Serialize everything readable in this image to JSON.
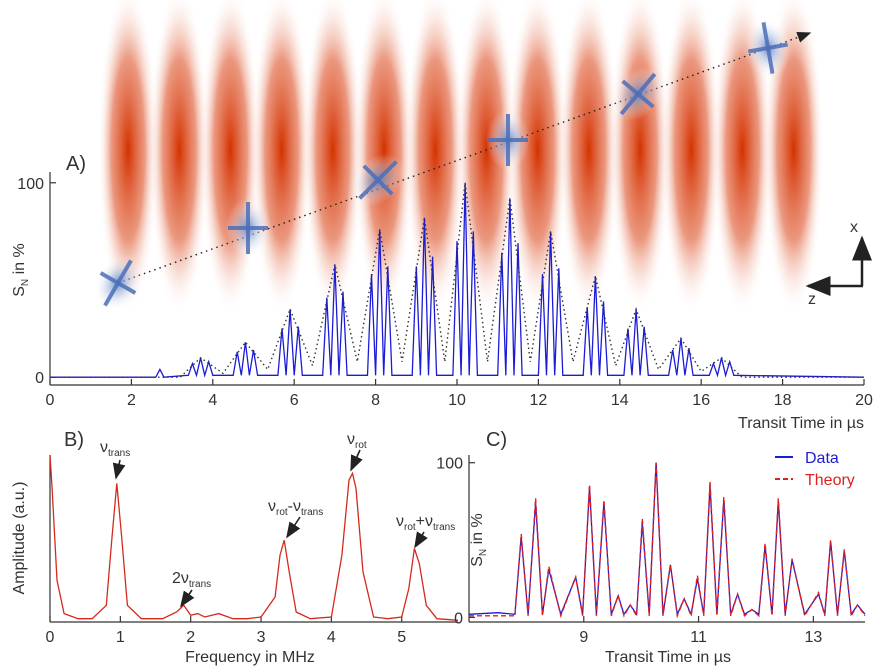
{
  "chart_data": [
    {
      "type": "line",
      "panel_label": "A)",
      "xlabel": "Transit Time in µs",
      "ylabel": [
        "S",
        "N",
        " in %"
      ],
      "annotations": [
        "x",
        "z"
      ],
      "xlim": [
        0,
        20
      ],
      "ylim": [
        -4,
        104
      ],
      "xticks": [
        0,
        2,
        4,
        6,
        8,
        10,
        12,
        14,
        16,
        18,
        20
      ],
      "yticks": [
        0,
        100
      ],
      "series": [
        {
          "color": "#1c1cd6",
          "style": "solid",
          "x": [
            0,
            2.6,
            2.7,
            2.8,
            3.4,
            3.5,
            3.6,
            3.7,
            3.8,
            3.9,
            4.0,
            4.5,
            4.6,
            4.7,
            4.8,
            4.9,
            5.0,
            5.1,
            5.6,
            5.7,
            5.8,
            5.9,
            6.0,
            6.1,
            6.2,
            6.7,
            6.8,
            6.9,
            7.0,
            7.1,
            7.2,
            7.3,
            7.8,
            7.9,
            8.0,
            8.1,
            8.2,
            8.3,
            8.4,
            8.9,
            9.0,
            9.1,
            9.2,
            9.3,
            9.4,
            9.5,
            9.9,
            10.0,
            10.1,
            10.2,
            10.3,
            10.4,
            10.5,
            11.0,
            11.1,
            11.2,
            11.3,
            11.4,
            11.5,
            11.6,
            12.0,
            12.1,
            12.2,
            12.3,
            12.4,
            12.5,
            12.6,
            13.1,
            13.2,
            13.3,
            13.4,
            13.5,
            13.6,
            13.7,
            14.1,
            14.2,
            14.3,
            14.4,
            14.5,
            14.6,
            14.7,
            15.2,
            15.3,
            15.4,
            15.5,
            15.6,
            15.7,
            15.8,
            16.2,
            16.3,
            16.4,
            16.5,
            16.6,
            16.7,
            16.8,
            20
          ],
          "values": [
            0,
            0,
            4,
            0,
            1,
            7,
            1,
            10,
            1,
            8,
            1,
            1,
            13,
            1,
            18,
            1,
            14,
            1,
            1,
            25,
            1,
            35,
            1,
            26,
            1,
            1,
            41,
            1,
            58,
            1,
            44,
            1,
            1,
            53,
            1,
            76,
            1,
            57,
            1,
            1,
            57,
            1,
            82,
            1,
            62,
            1,
            1,
            70,
            1,
            100,
            1,
            75,
            1,
            1,
            64,
            1,
            92,
            1,
            69,
            1,
            1,
            53,
            1,
            75,
            1,
            56,
            1,
            1,
            36,
            1,
            52,
            1,
            39,
            1,
            1,
            25,
            1,
            35,
            1,
            26,
            1,
            1,
            14,
            1,
            20,
            1,
            15,
            1,
            1,
            7,
            1,
            10,
            1,
            8,
            1,
            0
          ]
        },
        {
          "color": "#333333",
          "style": "dotted",
          "x": [
            0,
            3.2,
            3.7,
            4.25,
            4.8,
            5.35,
            5.9,
            6.45,
            7.0,
            7.55,
            8.1,
            8.65,
            9.2,
            9.7,
            10.2,
            10.75,
            11.3,
            11.8,
            12.3,
            12.85,
            13.4,
            13.9,
            14.4,
            14.95,
            15.5,
            16.0,
            16.5,
            17.0,
            20
          ],
          "values": [
            0,
            0,
            10,
            2,
            18,
            4,
            35,
            6,
            58,
            8,
            76,
            8,
            82,
            8,
            100,
            8,
            92,
            8,
            75,
            8,
            52,
            6,
            35,
            4,
            20,
            3,
            10,
            0,
            0
          ]
        }
      ]
    },
    {
      "type": "line",
      "panel_label": "B)",
      "xlabel": "Frequency in MHz",
      "ylabel": [
        "Amplitude (a.u.)"
      ],
      "xlim": [
        0,
        5.8
      ],
      "ylim": [
        0,
        1
      ],
      "xticks": [
        0,
        1,
        2,
        3,
        4,
        5
      ],
      "annotations": [
        [
          "ν",
          "trans"
        ],
        [
          "2ν",
          "trans"
        ],
        [
          "ν",
          "rot",
          "-ν",
          "trans"
        ],
        [
          "ν",
          "rot"
        ],
        [
          "ν",
          "rot",
          "+ν",
          "trans"
        ]
      ],
      "series": [
        {
          "color": "#d42a1e",
          "style": "solid",
          "x": [
            0,
            0.03,
            0.1,
            0.2,
            0.4,
            0.6,
            0.8,
            0.88,
            0.95,
            1.02,
            1.1,
            1.3,
            1.6,
            1.8,
            1.9,
            2.0,
            2.1,
            2.2,
            2.4,
            2.6,
            2.8,
            3.0,
            3.2,
            3.27,
            3.33,
            3.4,
            3.5,
            3.7,
            4.0,
            4.15,
            4.25,
            4.3,
            4.35,
            4.45,
            4.6,
            4.8,
            5.0,
            5.1,
            5.18,
            5.25,
            5.35,
            5.5,
            5.8
          ],
          "values": [
            1,
            0.8,
            0.25,
            0.05,
            0.02,
            0.02,
            0.1,
            0.5,
            0.83,
            0.5,
            0.1,
            0.02,
            0.02,
            0.06,
            0.1,
            0.04,
            0.05,
            0.03,
            0.05,
            0.02,
            0.02,
            0.03,
            0.15,
            0.4,
            0.49,
            0.3,
            0.06,
            0.02,
            0.03,
            0.4,
            0.85,
            0.89,
            0.8,
            0.3,
            0.03,
            0.02,
            0.03,
            0.2,
            0.44,
            0.35,
            0.1,
            0.02,
            0.01
          ]
        }
      ]
    },
    {
      "type": "line",
      "panel_label": "C)",
      "xlabel": "Transit Time in µs",
      "ylabel": [
        "S",
        "N",
        " in %"
      ],
      "xlim": [
        7,
        13.9
      ],
      "ylim": [
        -3,
        105
      ],
      "xticks": [
        9,
        11,
        13
      ],
      "yticks": [
        0,
        100
      ],
      "legend": "upper right",
      "series": [
        {
          "name": "Data",
          "color": "#1c1cd6",
          "style": "solid",
          "x": [
            7.0,
            7.5,
            7.8,
            7.91,
            8.03,
            8.16,
            8.28,
            8.39,
            8.6,
            8.86,
            8.98,
            9.1,
            9.22,
            9.35,
            9.48,
            9.6,
            9.7,
            9.81,
            9.92,
            10.02,
            10.14,
            10.26,
            10.38,
            10.51,
            10.63,
            10.75,
            10.87,
            10.98,
            11.09,
            11.2,
            11.32,
            11.44,
            11.56,
            11.68,
            11.8,
            11.93,
            12.05,
            12.16,
            12.28,
            12.39,
            12.51,
            12.63,
            12.85,
            13.09,
            13.2,
            13.3,
            13.42,
            13.54,
            13.66,
            13.77,
            13.9
          ],
          "values": [
            2,
            3,
            2,
            52,
            2,
            74,
            2,
            31,
            2,
            26,
            2,
            84,
            2,
            74,
            2,
            14,
            2,
            8,
            2,
            61,
            2,
            100,
            2,
            34,
            2,
            12,
            2,
            25,
            2,
            85,
            2,
            76,
            2,
            15,
            2,
            5,
            2,
            46,
            2,
            75,
            2,
            37,
            2,
            15,
            2,
            49,
            2,
            43,
            2,
            8,
            2
          ]
        },
        {
          "name": "Theory",
          "color": "#e02020",
          "style": "dashed",
          "x": [
            7.0,
            7.5,
            7.8,
            7.91,
            8.03,
            8.16,
            8.28,
            8.39,
            8.6,
            8.86,
            8.98,
            9.1,
            9.22,
            9.35,
            9.48,
            9.6,
            9.7,
            9.81,
            9.92,
            10.02,
            10.14,
            10.26,
            10.38,
            10.51,
            10.63,
            10.75,
            10.87,
            10.98,
            11.09,
            11.2,
            11.32,
            11.44,
            11.56,
            11.68,
            11.8,
            11.93,
            12.05,
            12.16,
            12.28,
            12.39,
            12.51,
            12.63,
            12.85,
            13.09,
            13.2,
            13.3,
            13.42,
            13.54,
            13.66,
            13.77,
            13.9
          ],
          "values": [
            1,
            1,
            1,
            54,
            1,
            77,
            1,
            33,
            1,
            26,
            1,
            86,
            1,
            76,
            1,
            14,
            1,
            8,
            1,
            64,
            1,
            100,
            1,
            34,
            1,
            12,
            1,
            27,
            1,
            88,
            1,
            78,
            1,
            15,
            1,
            5,
            1,
            48,
            1,
            77,
            1,
            38,
            1,
            16,
            1,
            50,
            1,
            44,
            1,
            8,
            1
          ]
        }
      ]
    }
  ]
}
